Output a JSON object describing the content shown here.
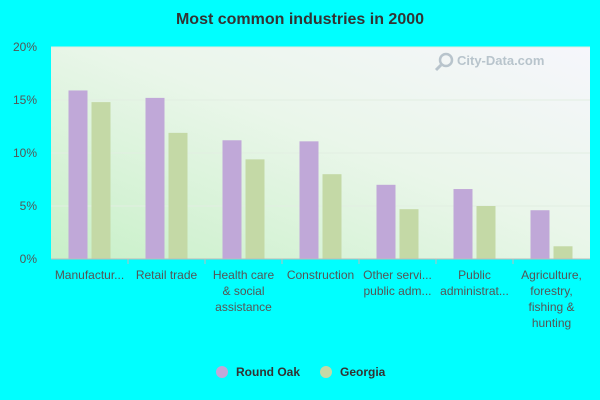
{
  "chart_data": {
    "type": "bar",
    "title": "Most common industries in 2000",
    "categories": [
      [
        "Manufactur..."
      ],
      [
        "Retail trade"
      ],
      [
        "Health care",
        "& social",
        "assistance"
      ],
      [
        "Construction"
      ],
      [
        "Other servi...",
        "public adm..."
      ],
      [
        "Public",
        "administrat..."
      ],
      [
        "Agriculture,",
        "forestry,",
        "fishing &",
        "hunting"
      ]
    ],
    "series": [
      {
        "name": "Round Oak",
        "color": "#c0a8d8",
        "values": [
          15.9,
          15.2,
          11.2,
          11.1,
          7.0,
          6.6,
          4.6
        ]
      },
      {
        "name": "Georgia",
        "color": "#c4d9a6",
        "values": [
          14.8,
          11.9,
          9.4,
          8.0,
          4.7,
          5.0,
          1.2
        ]
      }
    ],
    "ylim": [
      0,
      20
    ],
    "yticks": [
      {
        "value": 0,
        "label": "0%"
      },
      {
        "value": 5,
        "label": "5%"
      },
      {
        "value": 10,
        "label": "10%"
      },
      {
        "value": 15,
        "label": "15%"
      },
      {
        "value": 20,
        "label": "20%"
      }
    ],
    "grid": true,
    "legend_position": "bottom"
  },
  "watermark": {
    "text": "City-Data.com",
    "icon": "magnifier-icon"
  }
}
